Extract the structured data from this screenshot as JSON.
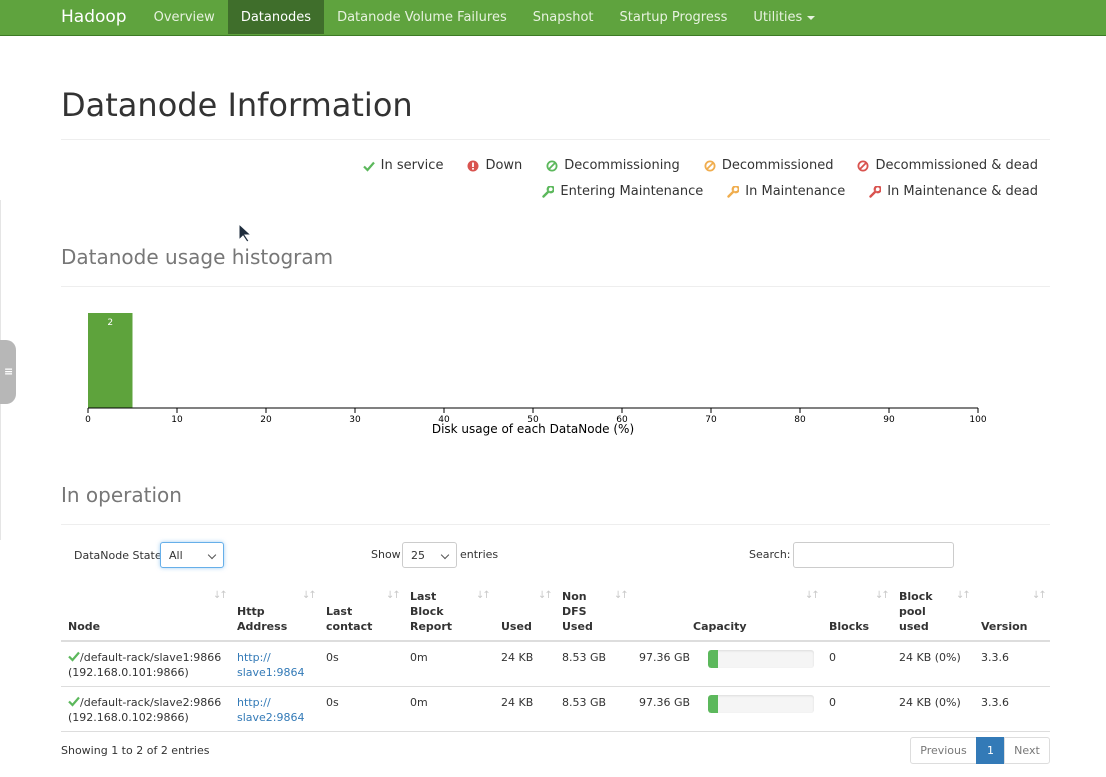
{
  "nav": {
    "brand": "Hadoop",
    "items": [
      "Overview",
      "Datanodes",
      "Datanode Volume Failures",
      "Snapshot",
      "Startup Progress",
      "Utilities"
    ],
    "active_index": 1
  },
  "page_title": "Datanode Information",
  "legend": {
    "row1": [
      {
        "icon": "check-icon",
        "label": "In service",
        "color": "#5cb85c"
      },
      {
        "icon": "exclamation-circle-icon",
        "label": "Down",
        "color": "#d9534f"
      },
      {
        "icon": "ban-icon",
        "label": "Decommissioning",
        "color": "#5cb85c"
      },
      {
        "icon": "ban-icon",
        "label": "Decommissioned",
        "color": "#f0ad4e"
      },
      {
        "icon": "ban-icon",
        "label": "Decommissioned & dead",
        "color": "#d9534f"
      }
    ],
    "row2": [
      {
        "icon": "wrench-icon",
        "label": "Entering Maintenance",
        "color": "#5cb85c"
      },
      {
        "icon": "wrench-icon",
        "label": "In Maintenance",
        "color": "#f0ad4e"
      },
      {
        "icon": "wrench-icon",
        "label": "In Maintenance & dead",
        "color": "#d9534f"
      }
    ]
  },
  "histogram_title": "Datanode usage histogram",
  "chart_data": {
    "type": "bar",
    "bins": [
      [
        0,
        5
      ]
    ],
    "values": [
      2
    ],
    "data_labels": [
      "2"
    ],
    "xlabel": "Disk usage of each DataNode (%)",
    "xlim": [
      0,
      100
    ],
    "x_ticks": [
      "0",
      "10",
      "20",
      "30",
      "40",
      "50",
      "60",
      "70",
      "80",
      "90",
      "100"
    ],
    "ylim": [
      0,
      2
    ],
    "bar_color": "#5ea33c",
    "grid": false
  },
  "operation_title": "In operation",
  "controls": {
    "state_label": "DataNode State",
    "state_value": "All",
    "show_label": "Show",
    "show_value": "25",
    "entries_label": "entries",
    "search_label": "Search:"
  },
  "table": {
    "headers": [
      [
        "Node"
      ],
      [
        "Http",
        "Address"
      ],
      [
        "Last",
        "contact"
      ],
      [
        "Last",
        "Block",
        "Report"
      ],
      [
        "Used"
      ],
      [
        "Non",
        "DFS",
        "Used"
      ],
      [
        "Capacity"
      ],
      [
        "Blocks"
      ],
      [
        "Block",
        "pool",
        "used"
      ],
      [
        "Version"
      ]
    ],
    "rows": [
      {
        "node": "/default-rack/slave1:9866",
        "node_ip": "(192.168.0.101:9866)",
        "http_1": "http://",
        "http_2": "slave1:9864",
        "last_contact": "0s",
        "last_block_report": "0m",
        "used": "24 KB",
        "non_dfs_used": "8.53 GB",
        "capacity": "97.36 GB",
        "capacity_used_fraction": 0.09,
        "blocks": "0",
        "block_pool_used": "24 KB (0%)",
        "version": "3.3.6"
      },
      {
        "node": "/default-rack/slave2:9866",
        "node_ip": "(192.168.0.102:9866)",
        "http_1": "http://",
        "http_2": "slave2:9864",
        "last_contact": "0s",
        "last_block_report": "0m",
        "used": "24 KB",
        "non_dfs_used": "8.53 GB",
        "capacity": "97.36 GB",
        "capacity_used_fraction": 0.09,
        "blocks": "0",
        "block_pool_used": "24 KB (0%)",
        "version": "3.3.6"
      }
    ]
  },
  "footer": {
    "showing": "Showing 1 to 2 of 2 entries",
    "previous": "Previous",
    "page": "1",
    "next": "Next"
  }
}
